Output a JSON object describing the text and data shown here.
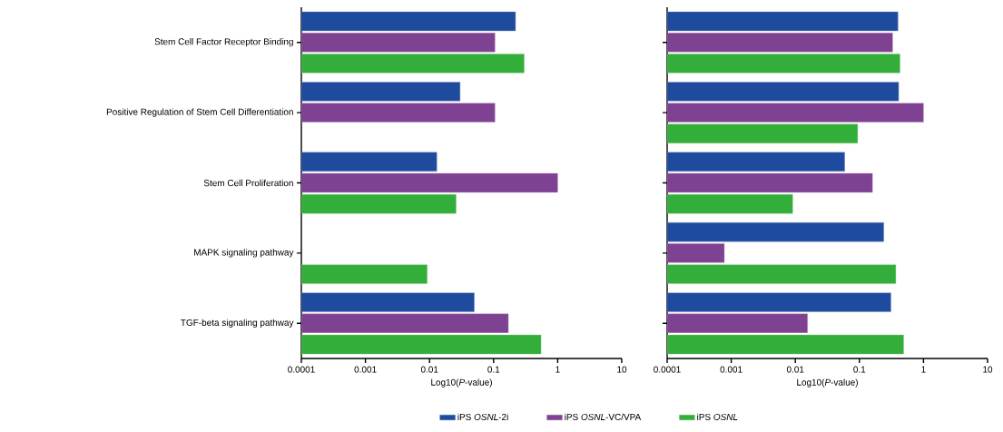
{
  "chart_data": [
    {
      "type": "bar",
      "orientation": "horizontal",
      "log": "x",
      "legend": "bottom",
      "categories": [
        "Stem Cell Factor Receptor Binding",
        "Positive Regulation of Stem Cell Differentiation",
        "Stem Cell Proliferation",
        "MAPK signaling pathway",
        "TGF-beta signaling pathway"
      ],
      "xlabel": "Log10(*P*-value)",
      "xlim": [
        0.0001,
        10
      ],
      "xticks": [
        0.0001,
        0.001,
        0.01,
        0.1,
        1,
        10
      ],
      "series": [
        {
          "name": "iPS *OSNL*-2i",
          "color": "#1f4b9e",
          "values": [
            0.22,
            0.03,
            0.013,
            null,
            0.05
          ]
        },
        {
          "name": "iPS *OSNL*-VC/VPA",
          "color": "#7f4191",
          "values": [
            0.105,
            0.105,
            1.0,
            null,
            0.17
          ]
        },
        {
          "name": "iPS *OSNL*",
          "color": "#33ae3a",
          "values": [
            0.3,
            null,
            0.026,
            0.0092,
            0.55
          ]
        }
      ]
    },
    {
      "type": "bar",
      "orientation": "horizontal",
      "log": "x",
      "tick_labels": "x",
      "categories": [
        null,
        null,
        null,
        null,
        null
      ],
      "xlabel": "Log10(*P*-value)",
      "xlim": [
        0.0001,
        10
      ],
      "xticks": [
        0.0001,
        0.001,
        0.01,
        0.1,
        1,
        10
      ],
      "series": [
        {
          "color": "#1f4b9e",
          "values": [
            0.4,
            0.41,
            0.059,
            0.24,
            0.31
          ]
        },
        {
          "color": "#7f4191",
          "values": [
            0.33,
            1.0,
            0.16,
            0.00078,
            0.0155
          ]
        },
        {
          "color": "#33ae3a",
          "values": [
            0.43,
            0.094,
            0.0091,
            0.37,
            0.49
          ]
        }
      ]
    }
  ]
}
